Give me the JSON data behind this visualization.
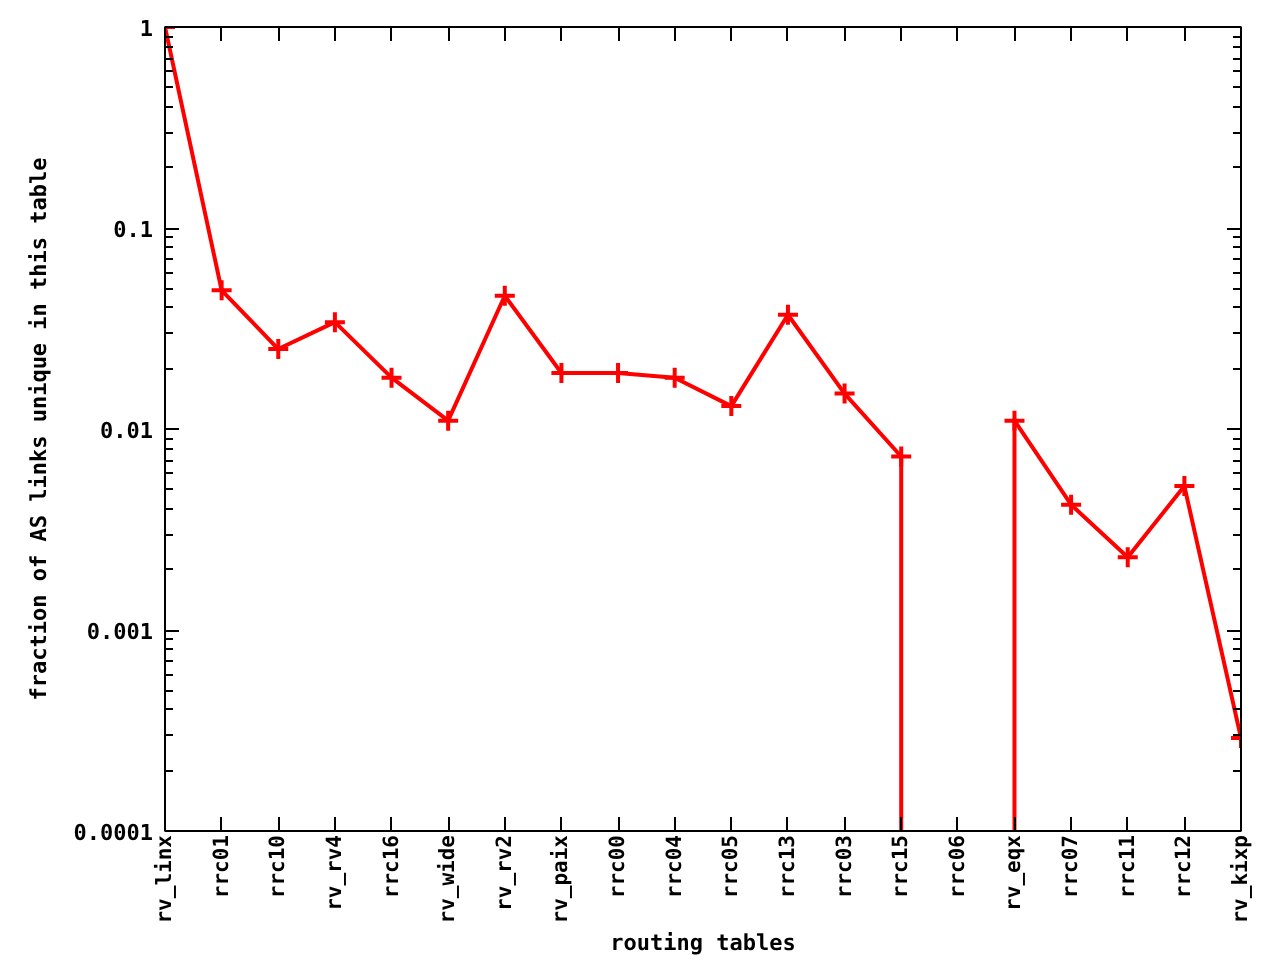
{
  "chart_data": {
    "type": "line",
    "xlabel": "routing tables",
    "ylabel": "fraction of AS links unique in this table",
    "categories": [
      "rv_linx",
      "rrc01",
      "rrc10",
      "rv_rv4",
      "rrc16",
      "rv_wide",
      "rv_rv2",
      "rv_paix",
      "rrc00",
      "rrc04",
      "rrc05",
      "rrc13",
      "rrc03",
      "rrc15",
      "rrc06",
      "rv_eqx",
      "rrc07",
      "rrc11",
      "rrc12",
      "rv_kixp"
    ],
    "series": [
      {
        "color": "#ff0000",
        "values": [
          1,
          0.049,
          0.025,
          0.034,
          0.018,
          0.011,
          0.046,
          0.019,
          0.019,
          0.018,
          0.013,
          0.037,
          0.015,
          0.0073,
          null,
          0.011,
          0.0042,
          0.0023,
          0.0052,
          0.00029
        ]
      },
      {
        "color": "#ff0000",
        "x": [
          "rrc15",
          "rrc15"
        ],
        "values": [
          0.0073,
          0.0001
        ],
        "marker": "none"
      },
      {
        "color": "#ff0000",
        "x": [
          "rv_eqx",
          "rv_eqx"
        ],
        "values": [
          0.0001,
          0.011
        ],
        "marker": "none"
      }
    ],
    "ylim": [
      0.0001,
      1
    ],
    "yticks": [
      0.0001,
      0.001,
      0.01,
      0.1,
      1
    ],
    "log": "y",
    "grid": false,
    "marker": "cross",
    "line_style": "solid"
  }
}
